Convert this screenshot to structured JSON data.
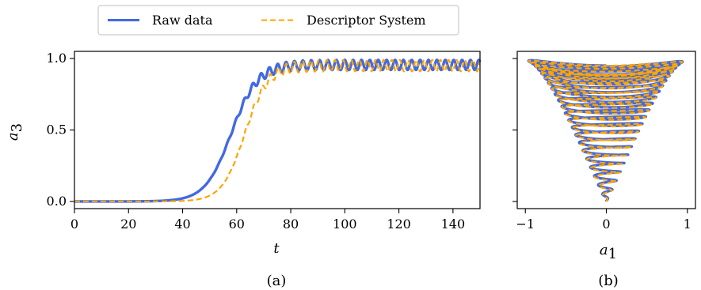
{
  "legend": {
    "placement": "top-center",
    "entries": [
      {
        "label": "Raw data",
        "color": "#4169e1",
        "style": "solid"
      },
      {
        "label": "Descriptor System",
        "color": "#ffa500",
        "style": "dashed"
      }
    ]
  },
  "chart_data": [
    {
      "type": "line",
      "panel_label": "(a)",
      "xlabel": "t",
      "ylabel_main": "a",
      "ylabel_sub": "3",
      "xlim": [
        0,
        150
      ],
      "ylim": [
        -0.05,
        1.05
      ],
      "xticks": [
        "0",
        "20",
        "40",
        "60",
        "80",
        "100",
        "120",
        "140"
      ],
      "yticks": [
        "0.0",
        "0.5",
        "1.0"
      ],
      "grid": false,
      "series": [
        {
          "name": "Raw data",
          "color": "#4169e1",
          "style": "solid",
          "sigmoid_midpoint_t": 58,
          "sigmoid_width": 4.8,
          "oscillation_period_t": 3.1,
          "final_min": 0.92,
          "final_max": 0.99
        },
        {
          "name": "Descriptor System",
          "color": "#ffa500",
          "style": "dashed",
          "sigmoid_midpoint_t": 63,
          "sigmoid_width": 4.2,
          "oscillation_period_t": 3.0,
          "final_min": 0.91,
          "final_max": 0.99
        }
      ]
    },
    {
      "type": "line",
      "panel_label": "(b)",
      "xlabel_main": "a",
      "xlabel_sub": "1",
      "xlim": [
        -1.1,
        1.1
      ],
      "ylim": [
        -0.05,
        1.05
      ],
      "xticks": [
        "−1",
        "0",
        "1"
      ],
      "grid": false,
      "series": [
        {
          "name": "Raw data",
          "color": "#4169e1",
          "style": "solid",
          "start": [
            0,
            0
          ],
          "end_amplitude": 0.97
        },
        {
          "name": "Descriptor System",
          "color": "#ffa500",
          "style": "dashed",
          "start": [
            0,
            0
          ],
          "end_amplitude": 0.97
        }
      ]
    }
  ]
}
